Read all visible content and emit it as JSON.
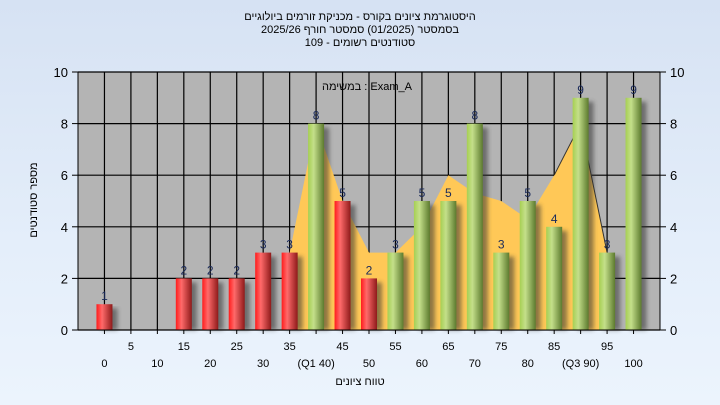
{
  "title": {
    "line1": "היסטוגרמת ציונים בקורס - מכניקת זורמים ביולוגיים",
    "line2": "בסמסטר  (01/2025)  סמסטר חורף 2025/26",
    "line3": "סטודנטים רשומים - 109"
  },
  "legend": "במשימה : Exam_A",
  "colors": {
    "background": "#dce7f6",
    "plot": "#b4b4b4",
    "low_bars": "#e8262a",
    "high_bars": "#9cc050",
    "area": "#ffc857"
  },
  "chart_data": {
    "type": "bar",
    "xlabel": "טווח ציונים",
    "ylabel": "מספר סטודנטים",
    "ylim": [
      0,
      10
    ],
    "yticks": [
      "0",
      "2",
      "4",
      "6",
      "8",
      "10"
    ],
    "grid": true,
    "categories": [
      "0",
      "5",
      "10",
      "15",
      "20",
      "25",
      "30",
      "35",
      "(Q1 40)",
      "45",
      "50",
      "55",
      "60",
      "65",
      "70",
      "75",
      "80",
      "85",
      "(Q3 90)",
      "95",
      "100"
    ],
    "values": [
      1,
      0,
      0,
      2,
      2,
      2,
      3,
      3,
      8,
      5,
      2,
      3,
      5,
      5,
      8,
      3,
      5,
      4,
      9,
      3,
      9
    ],
    "bar_color_split": "red up to 50, green from 55",
    "area_series": [
      null,
      null,
      null,
      null,
      null,
      null,
      null,
      3,
      8,
      5,
      3,
      3,
      4,
      6,
      5.3,
      5,
      4.3,
      6,
      8,
      3,
      null
    ]
  }
}
